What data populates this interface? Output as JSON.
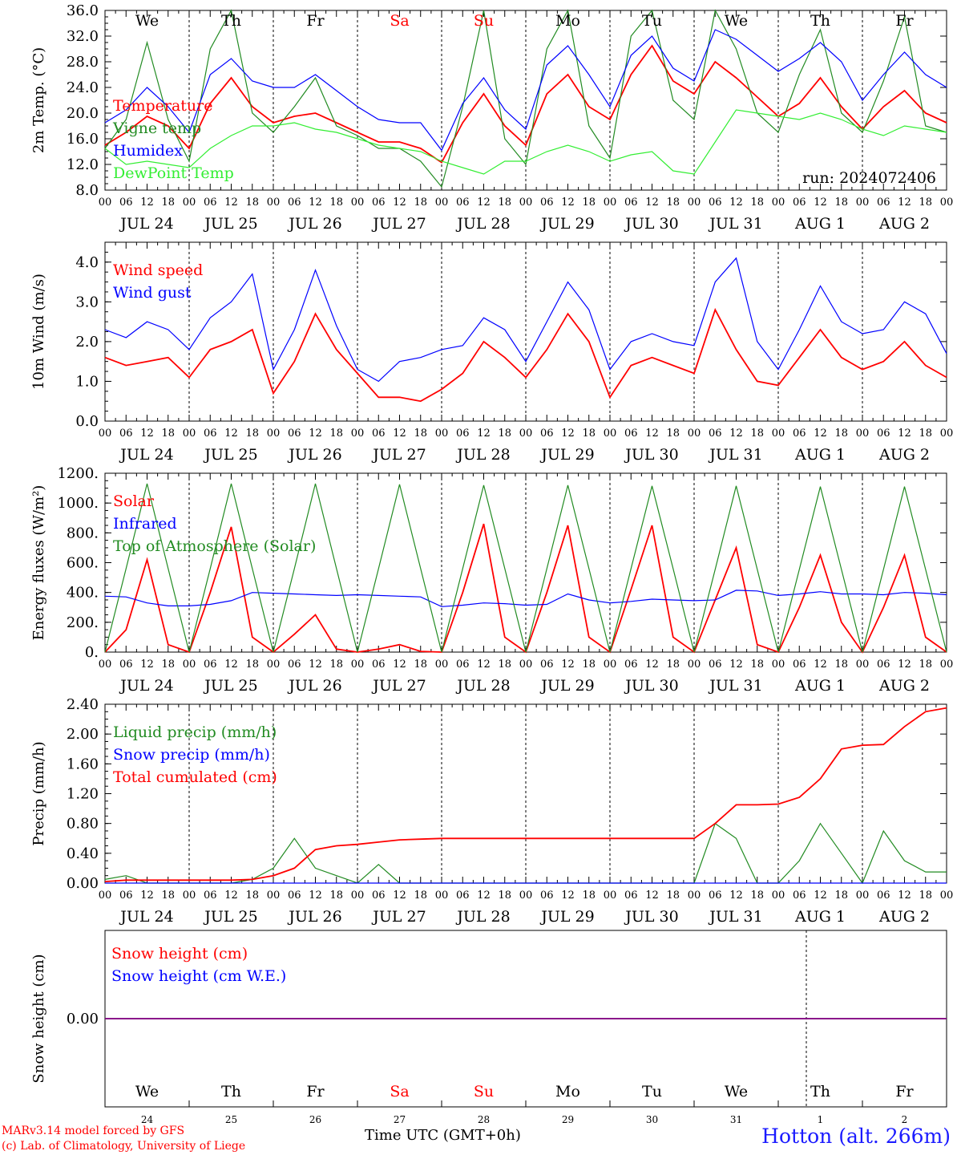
{
  "run_label": "run: 2024072406",
  "station": "Hotton (alt. 266m)",
  "footer": {
    "line1": "MARv3.14 model forced by GFS",
    "line2": "(c) Lab. of Climatology, University of Liege"
  },
  "time_axis_label": "Time UTC (GMT+0h)",
  "weekdays": [
    {
      "label": "We",
      "color": "#000000"
    },
    {
      "label": "Th",
      "color": "#000000"
    },
    {
      "label": "Fr",
      "color": "#000000"
    },
    {
      "label": "Sa",
      "color": "#ff0000"
    },
    {
      "label": "Su",
      "color": "#ff0000"
    },
    {
      "label": "Mo",
      "color": "#000000"
    },
    {
      "label": "Tu",
      "color": "#000000"
    },
    {
      "label": "We",
      "color": "#000000"
    },
    {
      "label": "Th",
      "color": "#000000"
    },
    {
      "label": "Fr",
      "color": "#000000"
    }
  ],
  "dates": [
    "JUL 24",
    "JUL 25",
    "JUL 26",
    "JUL 27",
    "JUL 28",
    "JUL 29",
    "JUL 30",
    "JUL 31",
    "AUG  1",
    "AUG  2"
  ],
  "hour_ticks": [
    "00",
    "06",
    "12",
    "18"
  ],
  "day_numbers": [
    "24",
    "25",
    "26",
    "27",
    "28",
    "29",
    "30",
    "31",
    "1",
    "2"
  ],
  "colors": {
    "red": "#ff0000",
    "green": "#228b22",
    "blue": "#0000ff",
    "lightgreen": "#33ee33",
    "purple": "#7f007f"
  },
  "chart_data": [
    {
      "type": "line",
      "ylabel": "2m Temp. (°C)",
      "ylim": [
        8,
        36
      ],
      "yticks": [
        "8.0",
        "12.0",
        "16.0",
        "20.0",
        "24.0",
        "28.0",
        "32.0",
        "36.0"
      ],
      "x": [
        0,
        6,
        12,
        18,
        24,
        30,
        36,
        42,
        48,
        54,
        60,
        66,
        72,
        78,
        84,
        90,
        96,
        102,
        108,
        114,
        120,
        126,
        132,
        138,
        144,
        150,
        156,
        162,
        168,
        174,
        180,
        186,
        192,
        198,
        204,
        210,
        216,
        222,
        228,
        234,
        240
      ],
      "series": [
        {
          "name": "Temperature",
          "color": "red",
          "values": [
            15,
            17,
            19.5,
            18,
            14.5,
            21.5,
            25.5,
            21,
            18.5,
            19.5,
            20,
            18.5,
            17,
            15.5,
            15.5,
            14.5,
            12.3,
            18.5,
            23,
            18,
            15,
            23,
            26,
            21,
            19,
            26,
            30.5,
            25,
            23,
            28,
            25.5,
            22.5,
            19.5,
            21.5,
            25.5,
            21,
            17.5,
            21,
            23.5,
            20,
            18.5
          ]
        },
        {
          "name": "Vigne temp",
          "color": "green",
          "values": [
            14.5,
            19,
            31,
            19,
            12.5,
            30,
            36,
            20,
            17,
            21,
            25.5,
            18,
            16.5,
            14.5,
            14.5,
            12.5,
            8.5,
            21,
            36,
            16,
            12,
            30,
            36,
            18,
            13,
            32,
            36,
            22,
            19,
            36,
            30,
            20,
            17,
            26,
            33,
            20,
            17,
            25,
            35,
            18,
            17
          ]
        },
        {
          "name": "Humidex",
          "color": "blue",
          "values": [
            18.5,
            20.5,
            24,
            21,
            17,
            26,
            28.5,
            25,
            24,
            24,
            26,
            23.5,
            21,
            19,
            18.5,
            18.5,
            14.2,
            21.5,
            25.5,
            20.5,
            17.5,
            27.5,
            30.5,
            26,
            21,
            29,
            32,
            27,
            25,
            33,
            31.5,
            29,
            26.5,
            28.5,
            31,
            28,
            22,
            26,
            29.5,
            26,
            24
          ]
        },
        {
          "name": "DewPoint Temp",
          "color": "lightgreen",
          "values": [
            14.5,
            12,
            12.5,
            12,
            11.5,
            14.5,
            16.5,
            18,
            18,
            18.5,
            17.5,
            17,
            16,
            15,
            14.5,
            14,
            12.5,
            11.5,
            10.5,
            12.5,
            12.5,
            14,
            15,
            14,
            12.5,
            13.5,
            14,
            11,
            10.5,
            15.5,
            20.5,
            20,
            19.5,
            19,
            20,
            19,
            17.5,
            16.5,
            18,
            17.5,
            17
          ]
        }
      ]
    },
    {
      "type": "line",
      "ylabel": "10m Wind (m/s)",
      "ylim": [
        0,
        4.5
      ],
      "yticks": [
        "0.0",
        "1.0",
        "2.0",
        "3.0",
        "4.0"
      ],
      "x": [
        0,
        6,
        12,
        18,
        24,
        30,
        36,
        42,
        48,
        54,
        60,
        66,
        72,
        78,
        84,
        90,
        96,
        102,
        108,
        114,
        120,
        126,
        132,
        138,
        144,
        150,
        156,
        162,
        168,
        174,
        180,
        186,
        192,
        198,
        204,
        210,
        216,
        222,
        228,
        234,
        240
      ],
      "series": [
        {
          "name": "Wind speed",
          "color": "red",
          "values": [
            1.6,
            1.4,
            1.5,
            1.6,
            1.1,
            1.8,
            2.0,
            2.3,
            0.7,
            1.5,
            2.7,
            1.8,
            1.2,
            0.6,
            0.6,
            0.5,
            0.8,
            1.2,
            2.0,
            1.6,
            1.1,
            1.8,
            2.7,
            2.0,
            0.6,
            1.4,
            1.6,
            1.4,
            1.2,
            2.8,
            1.8,
            1.0,
            0.9,
            1.6,
            2.3,
            1.6,
            1.3,
            1.5,
            2.0,
            1.4,
            1.1
          ]
        },
        {
          "name": "Wind gust",
          "color": "blue",
          "values": [
            2.3,
            2.1,
            2.5,
            2.3,
            1.8,
            2.6,
            3.0,
            3.7,
            1.3,
            2.3,
            3.8,
            2.4,
            1.3,
            1.0,
            1.5,
            1.6,
            1.8,
            1.9,
            2.6,
            2.3,
            1.5,
            2.5,
            3.5,
            2.8,
            1.3,
            2.0,
            2.2,
            2.0,
            1.9,
            3.5,
            4.1,
            2.0,
            1.3,
            2.3,
            3.4,
            2.5,
            2.2,
            2.3,
            3.0,
            2.7,
            1.7
          ]
        }
      ]
    },
    {
      "type": "line",
      "ylabel": "Energy fluxes (W/m²)",
      "ylim": [
        0,
        1200
      ],
      "yticks": [
        "0.",
        "200.",
        "400.",
        "600.",
        "800.",
        "1000.",
        "1200."
      ],
      "x": [
        0,
        6,
        12,
        18,
        24,
        30,
        36,
        42,
        48,
        54,
        60,
        66,
        72,
        78,
        84,
        90,
        96,
        102,
        108,
        114,
        120,
        126,
        132,
        138,
        144,
        150,
        156,
        162,
        168,
        174,
        180,
        186,
        192,
        198,
        204,
        210,
        216,
        222,
        228,
        234,
        240
      ],
      "series": [
        {
          "name": "Solar",
          "color": "red",
          "values": [
            0,
            150,
            620,
            50,
            0,
            400,
            840,
            100,
            0,
            120,
            250,
            20,
            0,
            20,
            50,
            5,
            0,
            400,
            860,
            100,
            0,
            400,
            850,
            100,
            0,
            420,
            850,
            100,
            0,
            350,
            700,
            50,
            0,
            300,
            650,
            200,
            0,
            300,
            650,
            100,
            0
          ]
        },
        {
          "name": "Infrared",
          "color": "blue",
          "values": [
            375,
            370,
            330,
            310,
            310,
            320,
            345,
            400,
            395,
            390,
            385,
            380,
            385,
            380,
            375,
            370,
            305,
            315,
            330,
            325,
            315,
            320,
            390,
            350,
            330,
            340,
            355,
            350,
            345,
            350,
            415,
            410,
            380,
            390,
            405,
            390,
            390,
            385,
            400,
            395,
            385
          ]
        },
        {
          "name": "Top of Atmosphere (Solar)",
          "color": "green",
          "values": [
            0,
            560,
            1130,
            560,
            0,
            560,
            1130,
            560,
            0,
            560,
            1130,
            560,
            0,
            560,
            1125,
            560,
            0,
            560,
            1120,
            560,
            0,
            560,
            1120,
            560,
            0,
            560,
            1115,
            560,
            0,
            555,
            1115,
            555,
            0,
            555,
            1110,
            555,
            0,
            555,
            1110,
            555,
            0
          ]
        }
      ]
    },
    {
      "type": "line",
      "ylabel": "Precip (mm/h)",
      "ylim": [
        0,
        2.4
      ],
      "yticks": [
        "0.00",
        "0.40",
        "0.80",
        "1.20",
        "1.60",
        "2.00",
        "2.40"
      ],
      "x": [
        0,
        6,
        12,
        18,
        24,
        30,
        36,
        42,
        48,
        54,
        60,
        66,
        72,
        78,
        84,
        90,
        96,
        102,
        108,
        114,
        120,
        126,
        132,
        138,
        144,
        150,
        156,
        162,
        168,
        174,
        180,
        186,
        192,
        198,
        204,
        210,
        216,
        222,
        228,
        234,
        240
      ],
      "series": [
        {
          "name": "Liquid precip (mm/h)",
          "color": "green",
          "values": [
            0.05,
            0.1,
            0,
            0,
            0,
            0,
            0,
            0.05,
            0.2,
            0.6,
            0.2,
            0.1,
            0,
            0.25,
            0,
            0,
            0,
            0,
            0,
            0,
            0,
            0,
            0,
            0,
            0,
            0,
            0,
            0,
            0,
            0.8,
            0.6,
            0,
            0,
            0.3,
            0.8,
            0.4,
            0,
            0.7,
            0.3,
            0.15,
            0.15
          ]
        },
        {
          "name": "Snow precip (mm/h)",
          "color": "blue",
          "values": [
            0,
            0,
            0,
            0,
            0,
            0,
            0,
            0,
            0,
            0,
            0,
            0,
            0,
            0,
            0,
            0,
            0,
            0,
            0,
            0,
            0,
            0,
            0,
            0,
            0,
            0,
            0,
            0,
            0,
            0,
            0,
            0,
            0,
            0,
            0,
            0,
            0,
            0,
            0,
            0,
            0
          ]
        },
        {
          "name": "Total cumulated (cm)",
          "color": "red",
          "values": [
            0.02,
            0.04,
            0.04,
            0.04,
            0.04,
            0.04,
            0.04,
            0.05,
            0.1,
            0.2,
            0.45,
            0.5,
            0.52,
            0.55,
            0.58,
            0.59,
            0.6,
            0.6,
            0.6,
            0.6,
            0.6,
            0.6,
            0.6,
            0.6,
            0.6,
            0.6,
            0.6,
            0.6,
            0.6,
            0.8,
            1.05,
            1.05,
            1.06,
            1.15,
            1.4,
            1.8,
            1.85,
            1.86,
            2.1,
            2.3,
            2.35
          ]
        }
      ]
    },
    {
      "type": "line",
      "ylabel": "Snow height (cm)",
      "ylim": [
        -1,
        1
      ],
      "yticks": [
        "0.00"
      ],
      "x": [
        0,
        240
      ],
      "series": [
        {
          "name": "Snow height (cm)",
          "color": "red",
          "values": [
            0,
            0
          ]
        },
        {
          "name": "Snow height (cm W.E.)",
          "color": "blue",
          "values": [
            0,
            0
          ]
        }
      ]
    }
  ]
}
